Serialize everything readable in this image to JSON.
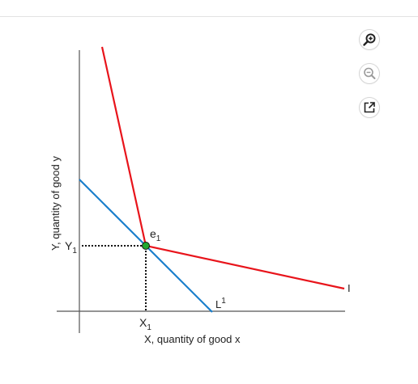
{
  "graph": {
    "y_axis_label": "Y, quantity of good y",
    "x_axis_label": "X, quantity of good x",
    "point_label": {
      "base": "e",
      "sub": "1"
    },
    "y_tick_label": {
      "base": "Y",
      "sub": "1"
    },
    "x_tick_label": {
      "base": "X",
      "sub": "1"
    },
    "budget_line_label": {
      "base": "L",
      "sup": "1"
    },
    "indifference_curve_label": "I",
    "colors": {
      "budget_line": "#1a7fcc",
      "indifference_curve": "#e8141b",
      "point_fill": "#1fa82f",
      "axes": "#555555"
    }
  },
  "toolbar": {
    "zoom_in_icon": "zoom-in-icon",
    "zoom_out_icon": "zoom-out-icon",
    "popout_icon": "external-link-icon"
  }
}
